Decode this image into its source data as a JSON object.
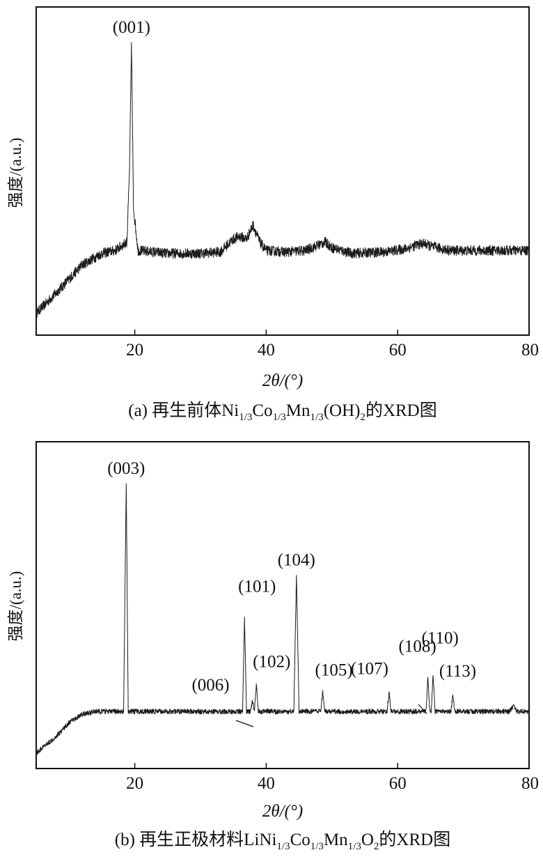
{
  "chart_data": [
    {
      "type": "line",
      "xlabel": "2θ/(°)",
      "ylabel": "强度/(a.u.)",
      "xlim": [
        5,
        80
      ],
      "xticks": [
        20,
        40,
        60,
        80
      ],
      "xtick_labels": [
        "20",
        "40",
        "60",
        "80"
      ],
      "grid": false,
      "legend": "none",
      "caption": {
        "prefix": "(a) 再生前体Ni",
        "parts": [
          {
            "text": "1/3",
            "sub": true
          },
          {
            "text": "Co",
            "sub": false
          },
          {
            "text": "1/3",
            "sub": true
          },
          {
            "text": "Mn",
            "sub": false
          },
          {
            "text": "1/3",
            "sub": true
          },
          {
            "text": "(OH)",
            "sub": false
          },
          {
            "text": "2",
            "sub": true
          },
          {
            "text": "的XRD图",
            "sub": false
          }
        ]
      },
      "series": [
        {
          "x": [
            5,
            8,
            12,
            15,
            17,
            18.8,
            19.2,
            19.5,
            19.8,
            20.5,
            25,
            30,
            33,
            35,
            36,
            37,
            38,
            39,
            40,
            43,
            46,
            48,
            49,
            50,
            53,
            58,
            61,
            63,
            64,
            65,
            68,
            75,
            80
          ],
          "y": [
            0.05,
            0.12,
            0.22,
            0.26,
            0.27,
            0.3,
            0.55,
            1.0,
            0.42,
            0.27,
            0.26,
            0.26,
            0.265,
            0.31,
            0.32,
            0.31,
            0.36,
            0.3,
            0.27,
            0.265,
            0.27,
            0.29,
            0.3,
            0.28,
            0.26,
            0.265,
            0.275,
            0.29,
            0.295,
            0.285,
            0.27,
            0.27,
            0.27
          ],
          "noise": 0.018
        }
      ],
      "annotations": [
        {
          "text": "(001)",
          "x": 19.5,
          "y": 1.0
        }
      ]
    },
    {
      "type": "line",
      "xlabel": "2θ/(°)",
      "ylabel": "强度/(a.u.)",
      "xlim": [
        5,
        80
      ],
      "xticks": [
        20,
        40,
        60,
        80
      ],
      "xtick_labels": [
        "20",
        "40",
        "60",
        "80"
      ],
      "grid": false,
      "legend": "none",
      "caption": {
        "prefix": "(b) 再生正极材料LiNi",
        "parts": [
          {
            "text": "1/3",
            "sub": true
          },
          {
            "text": "Co",
            "sub": false
          },
          {
            "text": "1/3",
            "sub": true
          },
          {
            "text": "Mn",
            "sub": false
          },
          {
            "text": "1/3",
            "sub": true
          },
          {
            "text": "O",
            "sub": false
          },
          {
            "text": "2",
            "sub": true
          },
          {
            "text": "的XRD图",
            "sub": false
          }
        ]
      },
      "series": [
        {
          "x": [
            5,
            8,
            10,
            12,
            14,
            16,
            18.3,
            18.7,
            19.0,
            25,
            30,
            36.4,
            36.7,
            37.0,
            37.6,
            37.9,
            38.2,
            38.5,
            38.8,
            40,
            44.2,
            44.6,
            45.0,
            48.3,
            48.6,
            48.9,
            55,
            58.4,
            58.7,
            59.0,
            64.3,
            64.6,
            64.9,
            65.1,
            65.4,
            65.7,
            68.1,
            68.4,
            68.7,
            75,
            77,
            77.6,
            78.2,
            80
          ],
          "y": [
            0.03,
            0.09,
            0.14,
            0.17,
            0.18,
            0.18,
            0.18,
            1.0,
            0.18,
            0.18,
            0.18,
            0.18,
            0.52,
            0.18,
            0.18,
            0.22,
            0.18,
            0.28,
            0.18,
            0.18,
            0.18,
            0.67,
            0.18,
            0.18,
            0.25,
            0.18,
            0.18,
            0.18,
            0.25,
            0.18,
            0.18,
            0.3,
            0.18,
            0.18,
            0.31,
            0.18,
            0.18,
            0.24,
            0.18,
            0.18,
            0.18,
            0.2,
            0.18,
            0.18
          ],
          "noise": 0.009
        }
      ],
      "annotations": [
        {
          "text": "(003)",
          "x": 18.7,
          "y": 1.0
        },
        {
          "text": "(101)",
          "x": 36.7,
          "y": 0.52
        },
        {
          "text": "(006)",
          "x": 37.9,
          "y": 0.22
        },
        {
          "text": "(102)",
          "x": 38.5,
          "y": 0.28
        },
        {
          "text": "(104)",
          "x": 44.6,
          "y": 0.67
        },
        {
          "text": "(105)",
          "x": 48.6,
          "y": 0.25
        },
        {
          "text": "(107)",
          "x": 58.7,
          "y": 0.25
        },
        {
          "text": "(108)",
          "x": 64.6,
          "y": 0.3
        },
        {
          "text": "(110)",
          "x": 65.4,
          "y": 0.31
        },
        {
          "text": "(113)",
          "x": 68.4,
          "y": 0.24
        }
      ]
    }
  ]
}
